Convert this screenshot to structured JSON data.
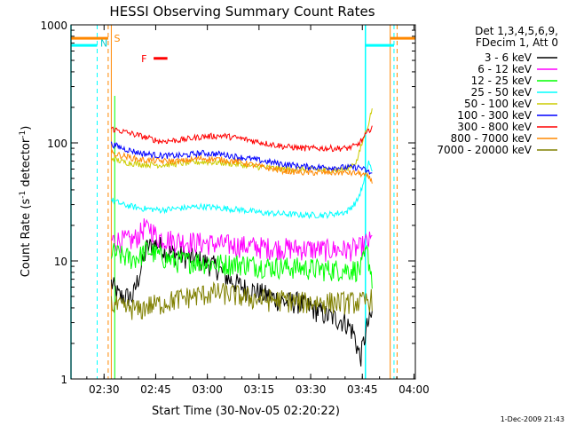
{
  "chart_data": {
    "type": "line",
    "title": "HESSI Observing Summary Count Rates",
    "xlabel": "Start Time (30-Nov-05 02:20:22)",
    "ylabel_main": "Count Rate (s",
    "ylabel_sup1": "-1",
    "ylabel_mid": " detector",
    "ylabel_sup2": "-1",
    "ylabel_end": ")",
    "y_scale": "log",
    "ylim": [
      1,
      1000
    ],
    "xlim_minutes": [
      0,
      100
    ],
    "xticks": [
      {
        "label": "02:30",
        "min": 9.6
      },
      {
        "label": "02:45",
        "min": 24.6
      },
      {
        "label": "03:00",
        "min": 39.6
      },
      {
        "label": "03:15",
        "min": 54.6
      },
      {
        "label": "03:30",
        "min": 69.6
      },
      {
        "label": "03:45",
        "min": 84.6
      },
      {
        "label": "04:00",
        "min": 99.6
      }
    ],
    "yticks": [
      {
        "label": "1",
        "value": 1
      },
      {
        "label": "10",
        "value": 10
      },
      {
        "label": "100",
        "value": 100
      },
      {
        "label": "1000",
        "value": 1000
      }
    ],
    "legend_header": [
      "Det 1,3,4,5,6,9,",
      "FDecim 1, Att 0"
    ],
    "legend_placement": "right",
    "footer_timestamp": "1-Dec-2009 21:43",
    "series": [
      {
        "name": "3 - 6 keV",
        "color": "#000000",
        "points": [
          [
            11.7,
            6.5
          ],
          [
            14,
            5
          ],
          [
            18,
            5
          ],
          [
            20,
            8
          ],
          [
            22,
            13
          ],
          [
            25,
            14
          ],
          [
            28,
            12
          ],
          [
            33,
            11
          ],
          [
            38,
            10
          ],
          [
            42,
            9
          ],
          [
            46,
            7
          ],
          [
            50,
            6
          ],
          [
            54,
            5.5
          ],
          [
            58,
            5
          ],
          [
            62,
            4.5
          ],
          [
            66,
            4.5
          ],
          [
            70,
            4
          ],
          [
            74,
            3.5
          ],
          [
            78,
            3.2
          ],
          [
            80,
            3
          ],
          [
            82,
            2.5
          ],
          [
            84,
            1.5
          ],
          [
            86,
            2.8
          ],
          [
            87.5,
            3.5
          ]
        ]
      },
      {
        "name": "6 - 12 keV",
        "color": "#ff00ff",
        "points": [
          [
            11.7,
            15
          ],
          [
            15,
            15
          ],
          [
            18,
            15
          ],
          [
            20,
            17
          ],
          [
            22,
            21
          ],
          [
            25,
            16
          ],
          [
            30,
            15
          ],
          [
            36,
            14.5
          ],
          [
            42,
            14
          ],
          [
            50,
            13.5
          ],
          [
            58,
            13
          ],
          [
            66,
            12.8
          ],
          [
            74,
            12.5
          ],
          [
            80,
            12.5
          ],
          [
            84,
            13
          ],
          [
            86,
            14.5
          ],
          [
            87.5,
            15
          ]
        ]
      },
      {
        "name": "12 - 25 keV",
        "color": "#00ff00",
        "points": [
          [
            11.7,
            12
          ],
          [
            15,
            11
          ],
          [
            18,
            10.5
          ],
          [
            20,
            11
          ],
          [
            22,
            12.5
          ],
          [
            26,
            11
          ],
          [
            30,
            10
          ],
          [
            36,
            10
          ],
          [
            42,
            9.5
          ],
          [
            50,
            9.5
          ],
          [
            58,
            9
          ],
          [
            66,
            8.8
          ],
          [
            74,
            8.5
          ],
          [
            80,
            8.5
          ],
          [
            84,
            8.5
          ],
          [
            86,
            12
          ],
          [
            87.5,
            7
          ]
        ]
      },
      {
        "name": "25 - 50 keV",
        "color": "#00ffff",
        "points": [
          [
            11.7,
            33
          ],
          [
            15,
            30
          ],
          [
            20,
            28
          ],
          [
            26,
            27
          ],
          [
            32,
            28
          ],
          [
            38,
            29
          ],
          [
            44,
            28
          ],
          [
            50,
            27
          ],
          [
            56,
            25.5
          ],
          [
            62,
            25
          ],
          [
            68,
            24.5
          ],
          [
            74,
            24.5
          ],
          [
            80,
            26
          ],
          [
            83,
            32
          ],
          [
            85,
            45
          ],
          [
            86.5,
            70
          ],
          [
            87.5,
            55
          ]
        ]
      },
      {
        "name": "50 - 100 keV",
        "color": "#cccc00",
        "points": [
          [
            11.7,
            75
          ],
          [
            15,
            69
          ],
          [
            20,
            66
          ],
          [
            26,
            65
          ],
          [
            32,
            67
          ],
          [
            38,
            69
          ],
          [
            44,
            68
          ],
          [
            50,
            65
          ],
          [
            56,
            62
          ],
          [
            62,
            60
          ],
          [
            68,
            60
          ],
          [
            74,
            59
          ],
          [
            80,
            60
          ],
          [
            83,
            70
          ],
          [
            85,
            110
          ],
          [
            86.5,
            150
          ],
          [
            87.5,
            200
          ]
        ]
      },
      {
        "name": "100 - 300 keV",
        "color": "#0000ff",
        "points": [
          [
            11.7,
            98
          ],
          [
            15,
            90
          ],
          [
            20,
            82
          ],
          [
            26,
            78
          ],
          [
            32,
            78
          ],
          [
            38,
            82
          ],
          [
            44,
            80
          ],
          [
            50,
            75
          ],
          [
            56,
            70
          ],
          [
            62,
            66
          ],
          [
            68,
            63
          ],
          [
            74,
            62
          ],
          [
            80,
            62
          ],
          [
            84,
            62
          ],
          [
            86,
            57
          ],
          [
            87.5,
            55
          ]
        ]
      },
      {
        "name": "300 - 800 keV",
        "color": "#ff0000",
        "points": [
          [
            11.7,
            132
          ],
          [
            15,
            125
          ],
          [
            20,
            115
          ],
          [
            26,
            103
          ],
          [
            32,
            106
          ],
          [
            38,
            113
          ],
          [
            44,
            115
          ],
          [
            50,
            108
          ],
          [
            56,
            100
          ],
          [
            62,
            93
          ],
          [
            68,
            90
          ],
          [
            74,
            90
          ],
          [
            80,
            90
          ],
          [
            83,
            95
          ],
          [
            85,
            110
          ],
          [
            87.5,
            140
          ]
        ]
      },
      {
        "name": "800 - 7000 keV",
        "color": "#ff8800",
        "points": [
          [
            11.7,
            82
          ],
          [
            15,
            78
          ],
          [
            20,
            72
          ],
          [
            26,
            70
          ],
          [
            32,
            70
          ],
          [
            38,
            74
          ],
          [
            44,
            72
          ],
          [
            50,
            68
          ],
          [
            56,
            62
          ],
          [
            62,
            58
          ],
          [
            68,
            56
          ],
          [
            74,
            56
          ],
          [
            80,
            56
          ],
          [
            84,
            55
          ],
          [
            86,
            52
          ],
          [
            87.5,
            48
          ]
        ]
      },
      {
        "name": "7000 - 20000 keV",
        "color": "#808000",
        "points": [
          [
            11.7,
            4.3
          ],
          [
            15,
            4
          ],
          [
            18,
            4
          ],
          [
            20,
            3.8
          ],
          [
            22,
            4.2
          ],
          [
            25,
            4.3
          ],
          [
            30,
            4.7
          ],
          [
            34,
            5
          ],
          [
            38,
            5.2
          ],
          [
            42,
            5.4
          ],
          [
            46,
            5.3
          ],
          [
            50,
            5
          ],
          [
            54,
            4.8
          ],
          [
            58,
            4.7
          ],
          [
            62,
            4.7
          ],
          [
            66,
            4.5
          ],
          [
            70,
            4.5
          ],
          [
            74,
            4.5
          ],
          [
            78,
            4.5
          ],
          [
            82,
            4.5
          ],
          [
            85,
            4.5
          ],
          [
            87.5,
            4.8
          ]
        ]
      }
    ],
    "flags": [
      {
        "letter": "S",
        "color": "#ff8800",
        "text_at_min": 12.0,
        "text_value": 770,
        "dashed_at_min": 10.8
      },
      {
        "letter": "N",
        "color": "#00cccc",
        "text_at_min": 8.0,
        "text_value": 700,
        "dashed_at_min": 7.6
      }
    ],
    "flag_F": {
      "letter": "F",
      "color": "#ff0000",
      "start_min": 24.0,
      "end_min": 28.0,
      "value": 520
    },
    "orange_bar": {
      "color": "#ff8800",
      "segments": [
        [
          0,
          10.8
        ],
        [
          92.7,
          100
        ]
      ],
      "value": 770
    },
    "cyan_bar": {
      "color": "#00ffff",
      "segments": [
        [
          0,
          7.6
        ],
        [
          85.5,
          93.8
        ]
      ],
      "value": 670
    },
    "orange_solid_lines_min": [
      11.7,
      92.7
    ],
    "orange_dashed_lines_min": [
      10.8,
      94.7
    ],
    "cyan_solid_lines_min": [
      0,
      85.5
    ],
    "cyan_dashed_lines_min": [
      7.6,
      93.8
    ],
    "green_solid_line_min": 12.7
  }
}
